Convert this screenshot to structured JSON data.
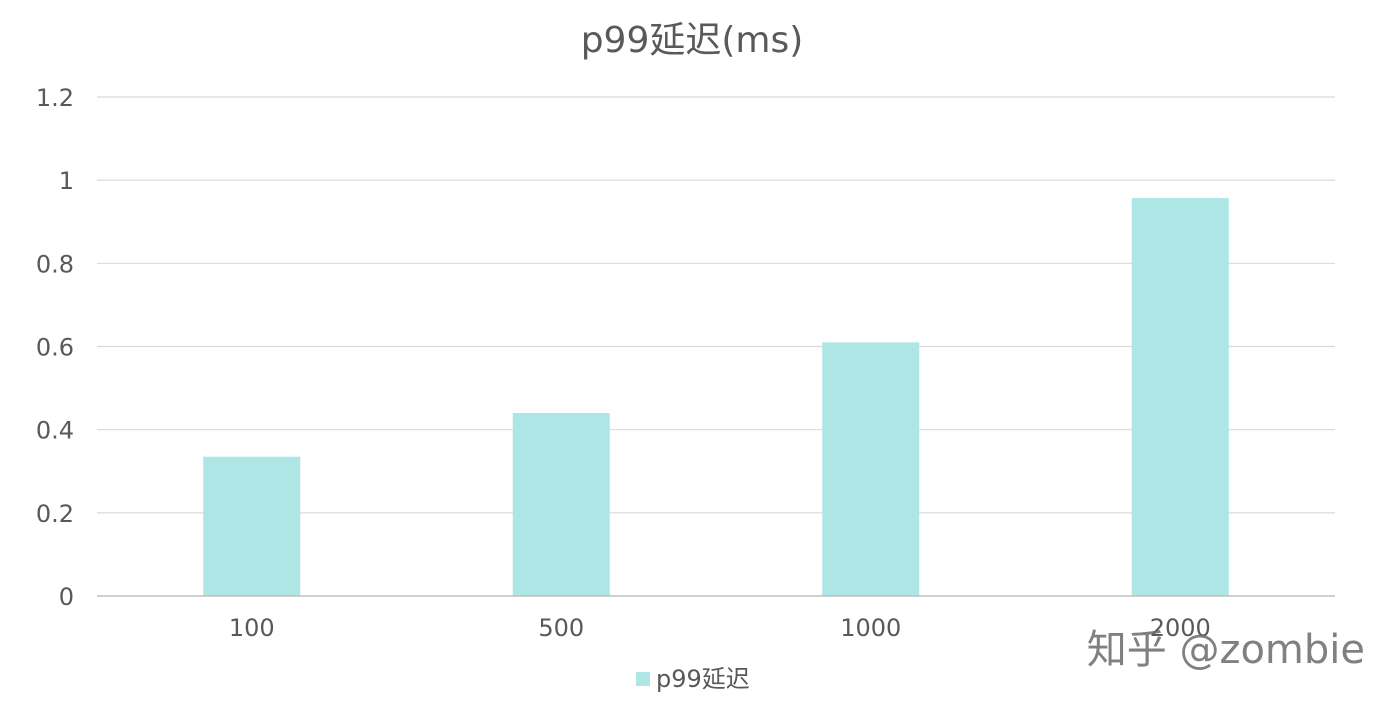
{
  "chart_data": {
    "type": "bar",
    "title": "p99延迟(ms)",
    "categories": [
      "100",
      "500",
      "1000",
      "2000"
    ],
    "series": [
      {
        "name": "p99延迟",
        "values": [
          0.335,
          0.44,
          0.61,
          0.957
        ]
      }
    ],
    "ylim": [
      0,
      1.2
    ],
    "yticks": [
      "0",
      "0.2",
      "0.4",
      "0.6",
      "0.8",
      "1",
      "1.2"
    ],
    "grid": true,
    "legend": "bottom",
    "bar_color": "#aee6e6",
    "grid_color": "#d9d9d9",
    "axis_color": "#bfbfbf",
    "text_color": "#595959"
  },
  "watermark": "知乎 @zombie"
}
